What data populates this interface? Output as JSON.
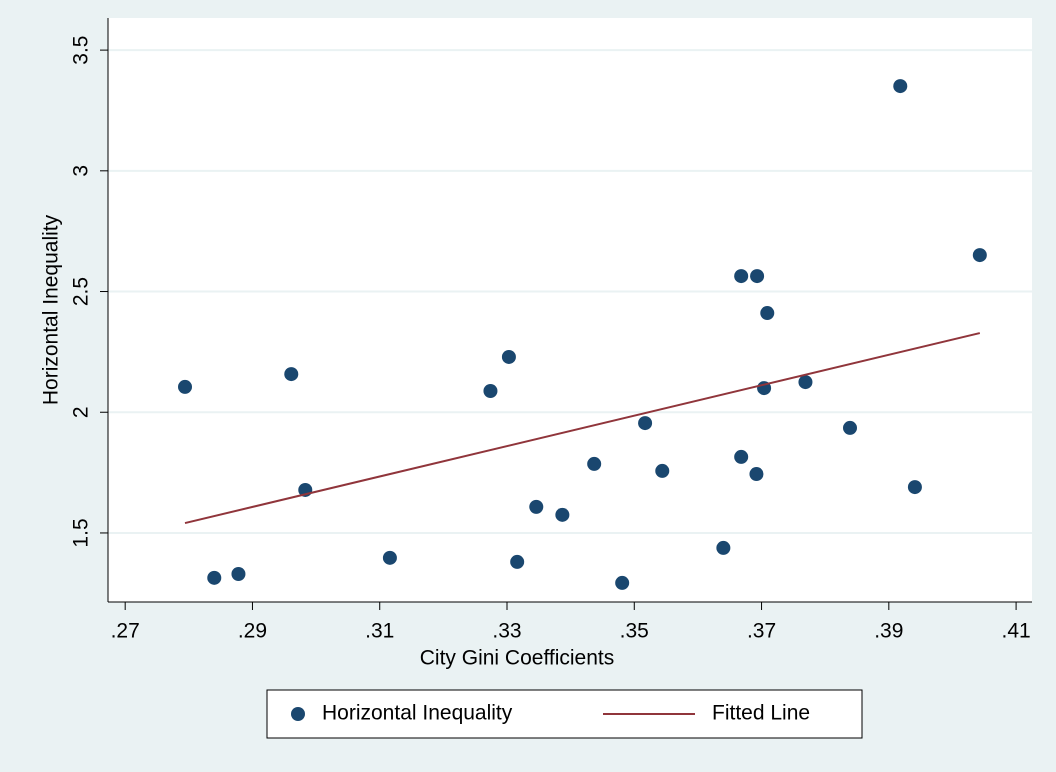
{
  "chart_data": {
    "type": "scatter",
    "x_label": "City Gini Coefficients",
    "y_label": "Horizontal Inequality",
    "xlim": [
      0.2673,
      0.4125
    ],
    "ylim": [
      1.214,
      3.633
    ],
    "xticks": [
      {
        "value": 0.27,
        "label": ".27"
      },
      {
        "value": 0.29,
        "label": ".29"
      },
      {
        "value": 0.31,
        "label": ".31"
      },
      {
        "value": 0.33,
        "label": ".33"
      },
      {
        "value": 0.35,
        "label": ".35"
      },
      {
        "value": 0.37,
        "label": ".37"
      },
      {
        "value": 0.39,
        "label": ".39"
      },
      {
        "value": 0.41,
        "label": ".41"
      }
    ],
    "yticks": [
      1.5,
      2,
      2.5,
      3,
      3.5
    ],
    "grid": true,
    "legend": "bottom",
    "series": [
      {
        "name": "Horizontal Inequality",
        "color": "#1a476f",
        "mode": "markers",
        "x": [
          0.2794,
          0.284,
          0.2878,
          0.2961,
          0.2983,
          0.3116,
          0.3274,
          0.3303,
          0.3316,
          0.3346,
          0.3387,
          0.3437,
          0.3481,
          0.3517,
          0.3544,
          0.364,
          0.3668,
          0.3668,
          0.3693,
          0.3692,
          0.3709,
          0.3704,
          0.3769,
          0.3839,
          0.3918,
          0.3941,
          0.4043
        ],
        "values": [
          2.105,
          1.314,
          1.33,
          2.158,
          1.678,
          1.397,
          2.088,
          2.229,
          1.38,
          1.608,
          1.575,
          1.786,
          1.293,
          1.955,
          1.757,
          1.438,
          2.564,
          1.815,
          2.564,
          1.744,
          2.411,
          2.1,
          2.125,
          1.935,
          3.351,
          1.69,
          2.651
        ]
      },
      {
        "name": "Fitted Line",
        "color": "#90353b",
        "mode": "line",
        "x": [
          0.2794,
          0.4043
        ],
        "values": [
          1.541,
          2.328
        ]
      }
    ]
  }
}
